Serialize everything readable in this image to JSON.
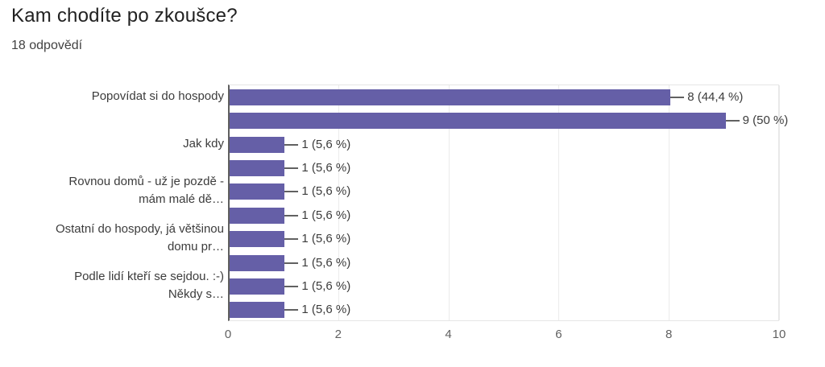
{
  "header": {
    "title": "Kam chodíte po zkoušce?",
    "subtitle": "18 odpovědí"
  },
  "chart_data": {
    "type": "bar",
    "orientation": "horizontal",
    "title": "Kam chodíte po zkoušce?",
    "subtitle": "18 odpovědí",
    "categories": [
      [
        "Popovídat si do hospody"
      ],
      [],
      [
        "Jak kdy"
      ],
      [],
      [
        "Rovnou domů - už je pozdě -",
        "mám malé dě…"
      ],
      [],
      [
        "Ostatní do hospody, já většinou",
        "domu pr…"
      ],
      [],
      [
        "Podle lidí kteří se sejdou. :-)",
        "Někdy s…"
      ],
      []
    ],
    "values": [
      8,
      9,
      1,
      1,
      1,
      1,
      1,
      1,
      1,
      1
    ],
    "value_labels": [
      "8 (44,4 %)",
      "9 (50 %)",
      "1 (5,6 %)",
      "1 (5,6 %)",
      "1 (5,6 %)",
      "1 (5,6 %)",
      "1 (5,6 %)",
      "1 (5,6 %)",
      "1 (5,6 %)",
      "1 (5,6 %)"
    ],
    "xlabel": "",
    "ylabel": "",
    "xlim": [
      0,
      10
    ],
    "x_ticks": [
      "0",
      "2",
      "4",
      "6",
      "8",
      "10"
    ],
    "grid": true,
    "legend": "none",
    "colors": {
      "bar": "#655fa7",
      "axis_line": "#5f5f5f",
      "gridline": "#ebebeb",
      "plot_border": "#e6e6e6",
      "title_text": "#212121",
      "subtitle_text": "#424242",
      "label_text": "#3c3c3c",
      "tick_text": "#616161",
      "stem": "#616161",
      "background": "#ffffff"
    }
  }
}
